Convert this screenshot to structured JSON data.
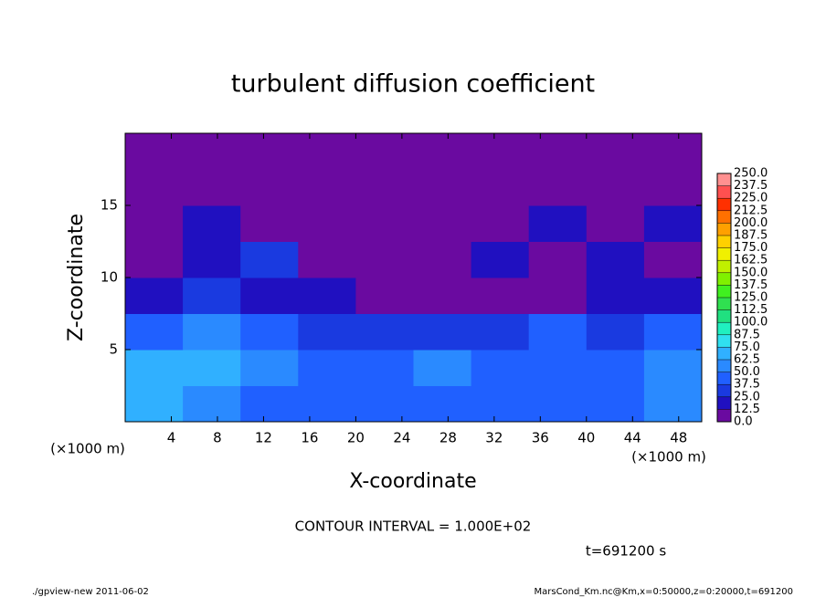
{
  "chart_data": {
    "type": "contour",
    "title": "turbulent diffusion coefficient",
    "xlabel": "X-coordinate",
    "ylabel": "Z-coordinate",
    "x_unit": "(×1000 m)",
    "contour_note": "CONTOUR INTERVAL = 1.000E+02",
    "time_label": "t=691200 s",
    "footer_left": "./gpview-new  2011-06-02",
    "footer_right": "MarsCond_Km.nc@Km,x=0:50000,z=0:20000,t=691200",
    "xlim": [
      0,
      50
    ],
    "ylim": [
      0,
      20
    ],
    "xticks": [
      4,
      8,
      12,
      16,
      20,
      24,
      28,
      32,
      36,
      40,
      44,
      48
    ],
    "yticks": [
      5,
      10,
      15
    ],
    "x_edges": [
      0,
      5,
      10,
      15,
      20,
      25,
      30,
      35,
      40,
      45,
      50
    ],
    "y_edges": [
      0,
      2.5,
      5,
      7.5,
      10,
      12.5,
      15,
      17.5,
      20
    ],
    "z": [
      [
        62.5,
        50,
        37.5,
        37.5,
        37.5,
        37.5,
        37.5,
        37.5,
        37.5,
        50
      ],
      [
        62.5,
        62.5,
        50,
        37.5,
        37.5,
        50,
        37.5,
        37.5,
        37.5,
        50
      ],
      [
        37.5,
        50,
        37.5,
        25,
        25,
        25,
        25,
        37.5,
        25,
        37.5
      ],
      [
        12.5,
        25,
        12.5,
        12.5,
        0,
        0,
        0,
        0,
        12.5,
        12.5
      ],
      [
        0,
        12.5,
        25,
        0,
        0,
        0,
        12.5,
        0,
        12.5,
        0
      ],
      [
        0,
        12.5,
        0,
        0,
        0,
        0,
        0,
        12.5,
        0,
        12.5
      ],
      [
        0,
        0,
        0,
        0,
        0,
        0,
        0,
        0,
        0,
        0
      ],
      [
        0,
        0,
        0,
        0,
        0,
        0,
        0,
        0,
        0,
        0
      ]
    ],
    "levels": [
      {
        "value": 0,
        "label": "0.0"
      },
      12.5,
      {
        "value": 25,
        "label": "25.0"
      },
      37.5,
      {
        "value": 50,
        "label": "50.0"
      },
      62.5,
      {
        "value": 75,
        "label": "75.0"
      },
      87.5,
      {
        "value": 100,
        "label": "100.0"
      },
      112.5,
      {
        "value": 125,
        "label": "125.0"
      },
      137.5,
      {
        "value": 150,
        "label": "150.0"
      },
      162.5,
      {
        "value": 175,
        "label": "175.0"
      },
      187.5,
      {
        "value": 200,
        "label": "200.0"
      },
      212.5,
      {
        "value": 225,
        "label": "225.0"
      },
      237.5,
      {
        "value": 250,
        "label": "250.0"
      }
    ],
    "colors": [
      "#6a0aa0",
      "#2010c0",
      "#1a3ae0",
      "#2060ff",
      "#2a8aff",
      "#30b0ff",
      "#30e0f0",
      "#20f0c0",
      "#20e080",
      "#30e050",
      "#40f020",
      "#80f000",
      "#c0f000",
      "#f0f000",
      "#ffd000",
      "#ffa000",
      "#ff7000",
      "#ff3000",
      "#ff5050",
      "#ff9090"
    ]
  }
}
